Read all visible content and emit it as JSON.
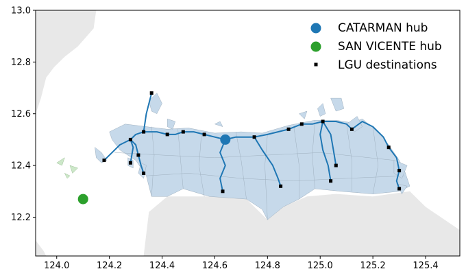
{
  "map": {
    "x_ticks": [
      "124.0",
      "124.2",
      "124.4",
      "124.6",
      "124.8",
      "125.0",
      "125.2",
      "125.4"
    ],
    "y_ticks": [
      "12.2",
      "12.4",
      "12.6",
      "12.8",
      "13.0"
    ],
    "x_tick_values": [
      124.0,
      124.2,
      124.4,
      124.6,
      124.8,
      125.0,
      125.2,
      125.4
    ],
    "y_tick_values": [
      12.2,
      12.4,
      12.6,
      12.8,
      13.0
    ],
    "xlim": [
      123.92,
      125.53
    ],
    "ylim": [
      12.05,
      13.0
    ],
    "colors": {
      "background_land": "#e8e8e8",
      "province_fill": "#c6d9ea",
      "route": "#1f77b4",
      "catarman_hub": "#1f77b4",
      "san_vicente_hub": "#2ca02c",
      "destination": "#000000"
    }
  },
  "legend": {
    "placement": "upper-right",
    "items": [
      {
        "label": "CATARMAN hub",
        "marker": "circle",
        "color": "#1f77b4"
      },
      {
        "label": "SAN VICENTE hub",
        "marker": "circle",
        "color": "#2ca02c"
      },
      {
        "label": "LGU destinations",
        "marker": "square",
        "color": "#000000"
      }
    ]
  },
  "hubs": [
    {
      "name": "CATARMAN",
      "lon": 124.64,
      "lat": 12.5,
      "color": "#1f77b4"
    },
    {
      "name": "SAN VICENTE",
      "lon": 124.1,
      "lat": 12.27,
      "color": "#2ca02c"
    }
  ],
  "destinations": [
    {
      "lon": 124.18,
      "lat": 12.42
    },
    {
      "lon": 124.28,
      "lat": 12.41
    },
    {
      "lon": 124.28,
      "lat": 12.5
    },
    {
      "lon": 124.31,
      "lat": 12.44
    },
    {
      "lon": 124.33,
      "lat": 12.53
    },
    {
      "lon": 124.33,
      "lat": 12.37
    },
    {
      "lon": 124.36,
      "lat": 12.68
    },
    {
      "lon": 124.42,
      "lat": 12.52
    },
    {
      "lon": 124.48,
      "lat": 12.53
    },
    {
      "lon": 124.56,
      "lat": 12.52
    },
    {
      "lon": 124.63,
      "lat": 12.3
    },
    {
      "lon": 124.75,
      "lat": 12.51
    },
    {
      "lon": 124.85,
      "lat": 12.32
    },
    {
      "lon": 124.88,
      "lat": 12.54
    },
    {
      "lon": 124.93,
      "lat": 12.56
    },
    {
      "lon": 125.01,
      "lat": 12.57
    },
    {
      "lon": 125.04,
      "lat": 12.34
    },
    {
      "lon": 125.06,
      "lat": 12.4
    },
    {
      "lon": 125.12,
      "lat": 12.54
    },
    {
      "lon": 125.26,
      "lat": 12.47
    },
    {
      "lon": 125.3,
      "lat": 12.38
    },
    {
      "lon": 125.3,
      "lat": 12.31
    }
  ],
  "routes": [
    [
      [
        124.64,
        12.5
      ],
      [
        124.6,
        12.51
      ],
      [
        124.56,
        12.52
      ],
      [
        124.52,
        12.53
      ],
      [
        124.48,
        12.53
      ],
      [
        124.45,
        12.52
      ],
      [
        124.42,
        12.52
      ],
      [
        124.38,
        12.53
      ],
      [
        124.33,
        12.53
      ],
      [
        124.3,
        12.52
      ],
      [
        124.28,
        12.5
      ]
    ],
    [
      [
        124.28,
        12.5
      ],
      [
        124.24,
        12.48
      ],
      [
        124.21,
        12.45
      ],
      [
        124.18,
        12.42
      ]
    ],
    [
      [
        124.28,
        12.5
      ],
      [
        124.29,
        12.47
      ],
      [
        124.28,
        12.41
      ]
    ],
    [
      [
        124.28,
        12.5
      ],
      [
        124.3,
        12.48
      ],
      [
        124.31,
        12.44
      ],
      [
        124.32,
        12.4
      ],
      [
        124.33,
        12.37
      ]
    ],
    [
      [
        124.33,
        12.53
      ],
      [
        124.34,
        12.6
      ],
      [
        124.36,
        12.68
      ]
    ],
    [
      [
        124.64,
        12.5
      ],
      [
        124.62,
        12.45
      ],
      [
        124.64,
        12.4
      ],
      [
        124.62,
        12.35
      ],
      [
        124.63,
        12.3
      ]
    ],
    [
      [
        124.64,
        12.5
      ],
      [
        124.68,
        12.51
      ],
      [
        124.72,
        12.51
      ],
      [
        124.75,
        12.51
      ],
      [
        124.8,
        12.52
      ],
      [
        124.84,
        12.53
      ],
      [
        124.88,
        12.54
      ],
      [
        124.93,
        12.56
      ],
      [
        124.97,
        12.56
      ],
      [
        125.01,
        12.57
      ]
    ],
    [
      [
        124.75,
        12.51
      ],
      [
        124.78,
        12.46
      ],
      [
        124.82,
        12.4
      ],
      [
        124.84,
        12.35
      ],
      [
        124.85,
        12.32
      ]
    ],
    [
      [
        125.01,
        12.57
      ],
      [
        125.0,
        12.52
      ],
      [
        125.01,
        12.46
      ],
      [
        125.03,
        12.4
      ],
      [
        125.04,
        12.34
      ]
    ],
    [
      [
        125.01,
        12.57
      ],
      [
        125.04,
        12.52
      ],
      [
        125.05,
        12.46
      ],
      [
        125.06,
        12.4
      ]
    ],
    [
      [
        125.01,
        12.57
      ],
      [
        125.06,
        12.57
      ],
      [
        125.1,
        12.56
      ],
      [
        125.12,
        12.54
      ]
    ],
    [
      [
        125.12,
        12.54
      ],
      [
        125.16,
        12.57
      ],
      [
        125.2,
        12.55
      ],
      [
        125.24,
        12.51
      ],
      [
        125.26,
        12.47
      ]
    ],
    [
      [
        125.26,
        12.47
      ],
      [
        125.29,
        12.43
      ],
      [
        125.3,
        12.38
      ],
      [
        125.29,
        12.34
      ],
      [
        125.3,
        12.31
      ]
    ]
  ],
  "province": [
    [
      124.2,
      12.53
    ],
    [
      124.26,
      12.56
    ],
    [
      124.34,
      12.55
    ],
    [
      124.42,
      12.54
    ],
    [
      124.5,
      12.545
    ],
    [
      124.6,
      12.525
    ],
    [
      124.7,
      12.53
    ],
    [
      124.78,
      12.525
    ],
    [
      124.88,
      12.555
    ],
    [
      124.98,
      12.575
    ],
    [
      125.06,
      12.575
    ],
    [
      125.12,
      12.565
    ],
    [
      125.16,
      12.58
    ],
    [
      125.22,
      12.53
    ],
    [
      125.26,
      12.48
    ],
    [
      125.3,
      12.42
    ],
    [
      125.32,
      12.38
    ],
    [
      125.34,
      12.32
    ],
    [
      125.3,
      12.3
    ],
    [
      125.2,
      12.29
    ],
    [
      125.08,
      12.3
    ],
    [
      124.98,
      12.31
    ],
    [
      124.92,
      12.27
    ],
    [
      124.86,
      12.24
    ],
    [
      124.8,
      12.19
    ],
    [
      124.78,
      12.23
    ],
    [
      124.72,
      12.27
    ],
    [
      124.58,
      12.28
    ],
    [
      124.48,
      12.31
    ],
    [
      124.42,
      12.28
    ],
    [
      124.36,
      12.28
    ],
    [
      124.34,
      12.36
    ],
    [
      124.3,
      12.42
    ],
    [
      124.24,
      12.46
    ],
    [
      124.21,
      12.5
    ]
  ],
  "mainland_bg": [
    [
      124.33,
      12.05
    ],
    [
      124.35,
      12.22
    ],
    [
      124.42,
      12.28
    ],
    [
      124.58,
      12.28
    ],
    [
      124.72,
      12.27
    ],
    [
      124.8,
      12.19
    ],
    [
      124.86,
      12.24
    ],
    [
      124.95,
      12.28
    ],
    [
      125.06,
      12.29
    ],
    [
      125.2,
      12.28
    ],
    [
      125.34,
      12.3
    ],
    [
      125.4,
      12.24
    ],
    [
      125.53,
      12.15
    ],
    [
      125.53,
      12.05
    ]
  ],
  "west_bg": [
    [
      123.92,
      13.0
    ],
    [
      124.15,
      13.0
    ],
    [
      124.14,
      12.93
    ],
    [
      124.08,
      12.86
    ],
    [
      124.03,
      12.82
    ],
    [
      123.99,
      12.78
    ],
    [
      123.96,
      12.74
    ],
    [
      123.94,
      12.66
    ],
    [
      123.92,
      12.6
    ]
  ],
  "southwest_bg": [
    [
      123.92,
      12.11
    ],
    [
      123.95,
      12.07
    ],
    [
      123.96,
      12.05
    ],
    [
      123.92,
      12.05
    ]
  ]
}
